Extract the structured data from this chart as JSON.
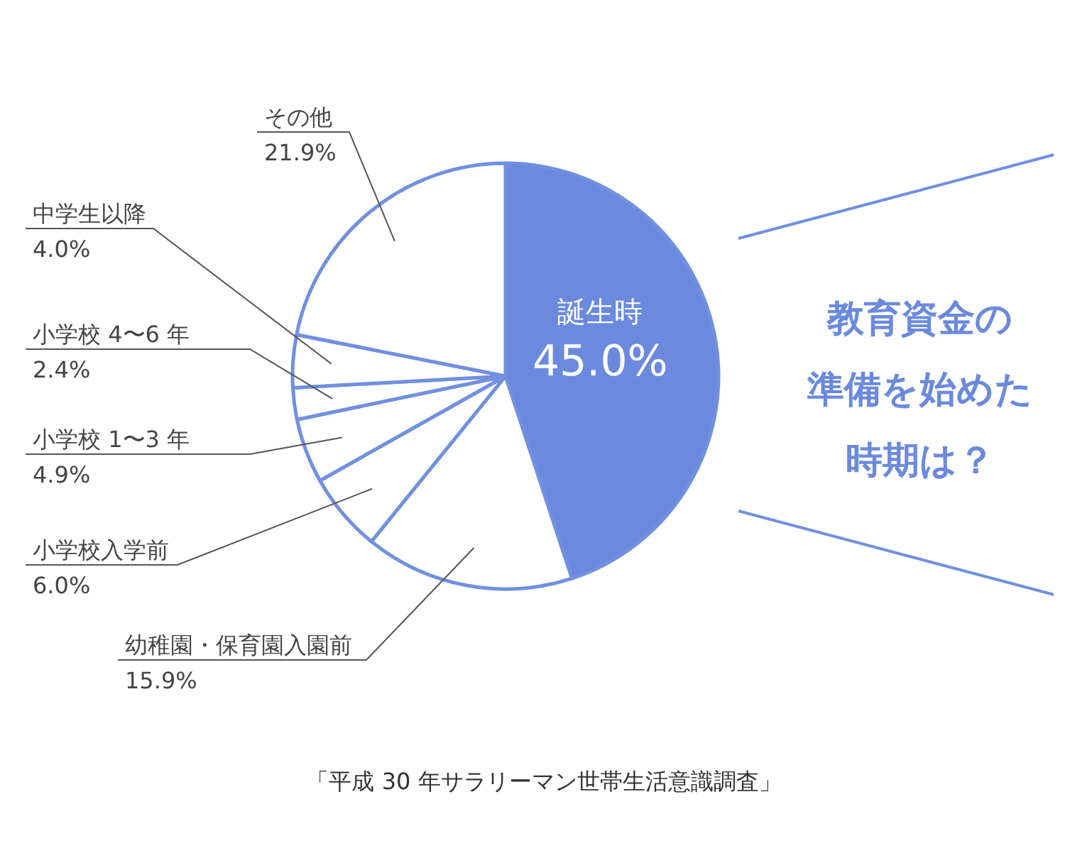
{
  "chart_data": {
    "type": "pie",
    "title": "教育資金の準備を始めた時期は？",
    "categories": [
      "誕生時",
      "幼稚園・保育園入園前",
      "小学校入学前",
      "小学校 1〜3 年",
      "小学校 4〜6 年",
      "中学生以降",
      "その他"
    ],
    "values": [
      45.0,
      15.9,
      6.0,
      4.9,
      2.4,
      4.0,
      21.9
    ],
    "value_labels": [
      "45.0%",
      "15.9%",
      "6.0%",
      "4.9%",
      "2.4%",
      "4.0%",
      "21.9%"
    ],
    "colors": [
      "#6b8ade",
      "#ffffff",
      "#ffffff",
      "#ffffff",
      "#ffffff",
      "#ffffff",
      "#ffffff"
    ],
    "annotations": [
      "「平成 30 年サラリーマン世帯生活意識調査」"
    ]
  }
}
